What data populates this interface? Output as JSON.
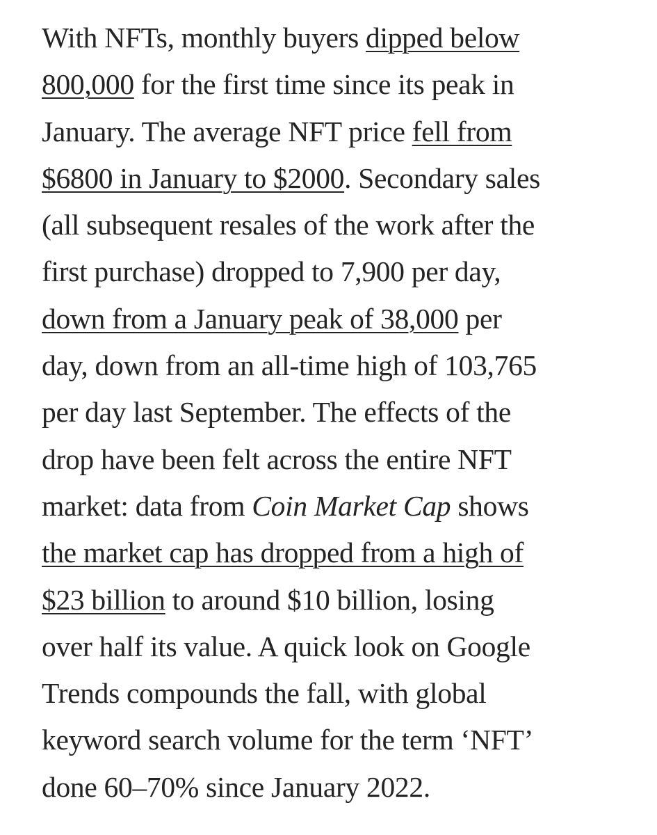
{
  "article": {
    "lines": [
      {
        "a": "With NFTs, monthly buyers ",
        "link": "dipped below",
        "b": ""
      },
      {
        "a": "",
        "link": "800,000",
        "b": " for the first time since its peak in"
      },
      {
        "a": "January. The average NFT price ",
        "link": "fell from",
        "b": ""
      },
      {
        "a": "",
        "link": "$6800 in January to $2000",
        "b": ". Secondary sales"
      },
      {
        "text": "(all subsequent resales of the work after the"
      },
      {
        "text": "first purchase) dropped to 7,900 per day,"
      },
      {
        "a": "",
        "link": "down from a January peak of 38,000",
        "b": " per"
      },
      {
        "text": "day, down from an all-time high of 103,765"
      },
      {
        "text": "per day last September. The effects of the"
      },
      {
        "text": "drop have been felt across the entire NFT"
      },
      {
        "a": "market: data from ",
        "em": "Coin Market Cap",
        "b": " shows"
      },
      {
        "a": "",
        "link": "the market cap has dropped from a high of",
        "b": ""
      },
      {
        "a": "",
        "link": "$23 billion",
        "b": " to around $10 billion, losing"
      },
      {
        "text": "over half its value. A quick look on Google"
      },
      {
        "text": "Trends compounds the fall, with global"
      },
      {
        "text": "keyword search volume for the term ‘NFT’"
      },
      {
        "text": "done 60–70% since January 2022."
      }
    ]
  }
}
